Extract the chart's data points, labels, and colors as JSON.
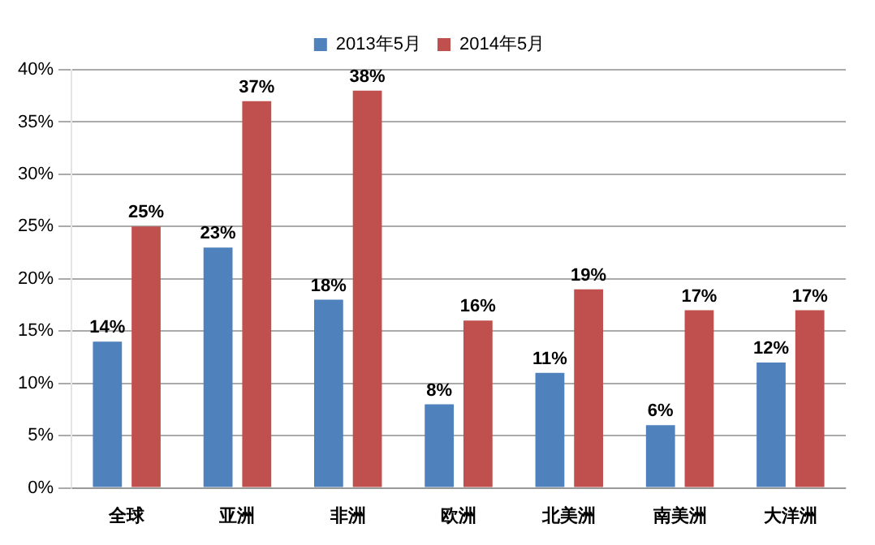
{
  "chart_data": {
    "type": "bar",
    "categories": [
      "全球",
      "亚洲",
      "非洲",
      "欧洲",
      "北美洲",
      "南美洲",
      "大洋洲"
    ],
    "series": [
      {
        "name": "2013年5月",
        "color": "#4f81bd",
        "values": [
          14,
          23,
          18,
          8,
          11,
          6,
          12
        ],
        "value_labels": [
          "14%",
          "23%",
          "18%",
          "8%",
          "11%",
          "6%",
          "12%"
        ]
      },
      {
        "name": "2014年5月",
        "color": "#c0504d",
        "values": [
          25,
          37,
          38,
          16,
          19,
          17,
          17
        ],
        "value_labels": [
          "25%",
          "37%",
          "38%",
          "16%",
          "19%",
          "17%",
          "17%"
        ]
      }
    ],
    "ylim": [
      0,
      40
    ],
    "yticks": [
      {
        "value": 0,
        "label": "0%"
      },
      {
        "value": 5,
        "label": "5%"
      },
      {
        "value": 10,
        "label": "10%"
      },
      {
        "value": 15,
        "label": "15%"
      },
      {
        "value": 20,
        "label": "20%"
      },
      {
        "value": 25,
        "label": "25%"
      },
      {
        "value": 30,
        "label": "30%"
      },
      {
        "value": 35,
        "label": "35%"
      },
      {
        "value": 40,
        "label": "40%"
      }
    ],
    "grid": "y",
    "legend": "top"
  }
}
